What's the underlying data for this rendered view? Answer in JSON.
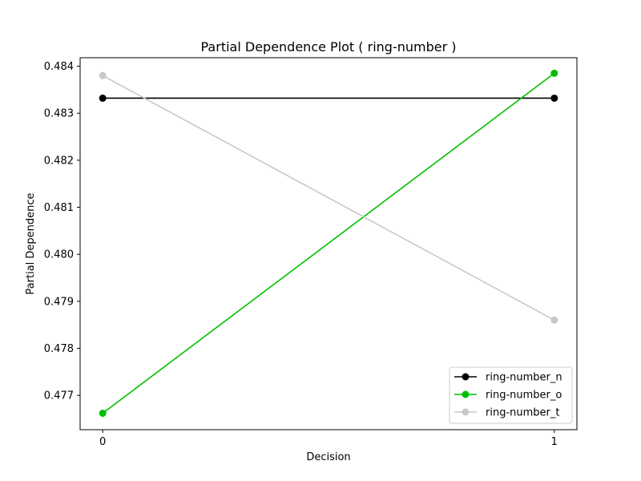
{
  "chart_data": {
    "type": "line",
    "title": "Partial Dependence Plot ( ring-number )",
    "xlabel": "Decision",
    "ylabel": "Partial Dependence",
    "x": [
      0,
      1
    ],
    "x_ticks": [
      "0",
      "1"
    ],
    "xlim": [
      -0.05,
      1.05
    ],
    "ylim": [
      0.47627,
      0.48418
    ],
    "y_ticks": [
      "0.477",
      "0.478",
      "0.479",
      "0.480",
      "0.481",
      "0.482",
      "0.483",
      "0.484"
    ],
    "grid": false,
    "legend_position": "lower-right",
    "series": [
      {
        "name": "ring-number_n",
        "values": [
          0.48332,
          0.48332
        ],
        "color": "#000000"
      },
      {
        "name": "ring-number_o",
        "values": [
          0.47662,
          0.48385
        ],
        "color": "#00bf00"
      },
      {
        "name": "ring-number_t",
        "values": [
          0.4838,
          0.4786
        ],
        "color": "#c8c8c8"
      }
    ]
  }
}
